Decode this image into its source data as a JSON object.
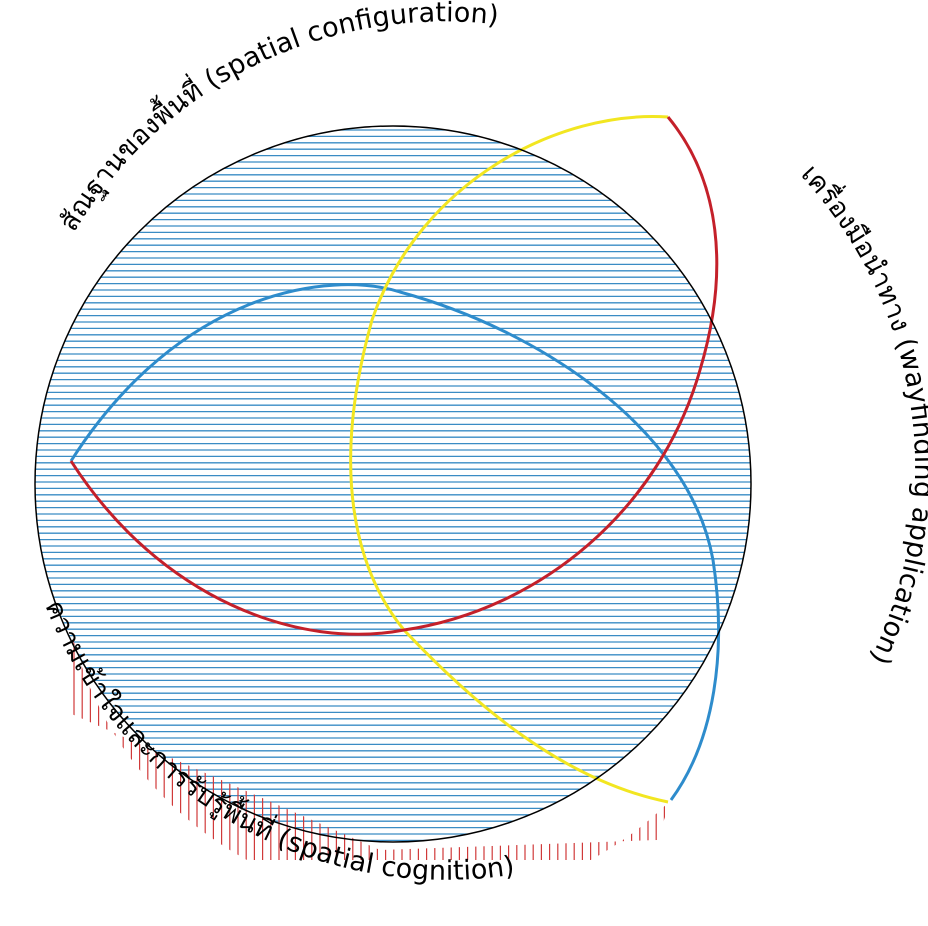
{
  "labels": {
    "top_left": "สัณฐานของพื้นที่ (spatial configuration)",
    "right": "เครื่องมือนำทาง (wayfinding application)",
    "bottom": "ความเข้าใจและการรับรู้พื้นที่ (spatial cognition)"
  },
  "colors": {
    "hatch_blue": "#3a8cc4",
    "hatch_red": "#d03a3a",
    "arc_red": "#c4202a",
    "arc_yellow": "#f2e621",
    "arc_blue": "#2e8ccc",
    "circle": "#000000"
  }
}
